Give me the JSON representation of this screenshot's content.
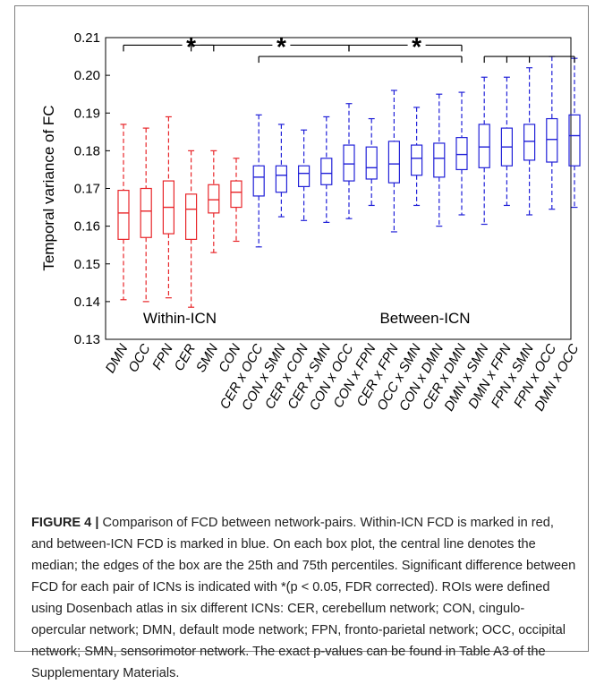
{
  "chart_data": {
    "type": "box",
    "ylabel": "Temporal variance of FC",
    "ylim": [
      0.13,
      0.21
    ],
    "yticks": [
      "0.13",
      "0.14",
      "0.15",
      "0.16",
      "0.17",
      "0.18",
      "0.19",
      "0.20",
      "0.21"
    ],
    "groups": [
      {
        "label": "Within-ICN",
        "color": "#e8262a"
      },
      {
        "label": "Between-ICN",
        "color": "#2121d8"
      }
    ],
    "boxes": [
      {
        "label": "DMN",
        "group": 0,
        "min": 0.1405,
        "q1": 0.1565,
        "median": 0.1635,
        "q3": 0.1695,
        "max": 0.187
      },
      {
        "label": "OCC",
        "group": 0,
        "min": 0.14,
        "q1": 0.157,
        "median": 0.164,
        "q3": 0.17,
        "max": 0.186
      },
      {
        "label": "FPN",
        "group": 0,
        "min": 0.141,
        "q1": 0.158,
        "median": 0.165,
        "q3": 0.172,
        "max": 0.189
      },
      {
        "label": "CER",
        "group": 0,
        "min": 0.1385,
        "q1": 0.1565,
        "median": 0.1645,
        "q3": 0.1685,
        "max": 0.18
      },
      {
        "label": "SMN",
        "group": 0,
        "min": 0.153,
        "q1": 0.1635,
        "median": 0.167,
        "q3": 0.171,
        "max": 0.18
      },
      {
        "label": "CON",
        "group": 0,
        "min": 0.156,
        "q1": 0.165,
        "median": 0.169,
        "q3": 0.172,
        "max": 0.178
      },
      {
        "label": "CER x OCC",
        "group": 1,
        "min": 0.1545,
        "q1": 0.168,
        "median": 0.173,
        "q3": 0.176,
        "max": 0.1895
      },
      {
        "label": "CON x SMN",
        "group": 1,
        "min": 0.1625,
        "q1": 0.169,
        "median": 0.1735,
        "q3": 0.176,
        "max": 0.187
      },
      {
        "label": "CER x CON",
        "group": 1,
        "min": 0.1615,
        "q1": 0.1705,
        "median": 0.174,
        "q3": 0.176,
        "max": 0.1855
      },
      {
        "label": "CER x SMN",
        "group": 1,
        "min": 0.161,
        "q1": 0.171,
        "median": 0.174,
        "q3": 0.178,
        "max": 0.189
      },
      {
        "label": "CON x OCC",
        "group": 1,
        "min": 0.162,
        "q1": 0.172,
        "median": 0.1765,
        "q3": 0.1815,
        "max": 0.1925
      },
      {
        "label": "CON x FPN",
        "group": 1,
        "min": 0.1655,
        "q1": 0.1725,
        "median": 0.1755,
        "q3": 0.181,
        "max": 0.1885
      },
      {
        "label": "CER x FPN",
        "group": 1,
        "min": 0.1585,
        "q1": 0.1715,
        "median": 0.1765,
        "q3": 0.1825,
        "max": 0.196
      },
      {
        "label": "OCC x SMN",
        "group": 1,
        "min": 0.1655,
        "q1": 0.1735,
        "median": 0.178,
        "q3": 0.1815,
        "max": 0.1915
      },
      {
        "label": "CON x DMN",
        "group": 1,
        "min": 0.16,
        "q1": 0.173,
        "median": 0.178,
        "q3": 0.182,
        "max": 0.195
      },
      {
        "label": "CER x DMN",
        "group": 1,
        "min": 0.163,
        "q1": 0.175,
        "median": 0.179,
        "q3": 0.1835,
        "max": 0.1955
      },
      {
        "label": "DMN x SMN",
        "group": 1,
        "min": 0.1605,
        "q1": 0.1755,
        "median": 0.181,
        "q3": 0.187,
        "max": 0.1995
      },
      {
        "label": "DMN x FPN",
        "group": 1,
        "min": 0.1655,
        "q1": 0.176,
        "median": 0.181,
        "q3": 0.186,
        "max": 0.1995
      },
      {
        "label": "FPN x SMN",
        "group": 1,
        "min": 0.163,
        "q1": 0.1775,
        "median": 0.1825,
        "q3": 0.187,
        "max": 0.202
      },
      {
        "label": "FPN x OCC",
        "group": 1,
        "min": 0.1645,
        "q1": 0.177,
        "median": 0.183,
        "q3": 0.1885,
        "max": 0.205
      },
      {
        "label": "DMN x OCC",
        "group": 1,
        "min": 0.165,
        "q1": 0.176,
        "median": 0.184,
        "q3": 0.1895,
        "max": 0.2045
      }
    ],
    "significance": [
      {
        "from": 0,
        "to": 4,
        "star_at": 3,
        "level": 0.208
      },
      {
        "from": 3,
        "to": 10,
        "star_at": 7,
        "level": 0.208
      },
      {
        "from": 10,
        "to": 15,
        "star_at": 13,
        "level": 0.208
      },
      {
        "from": 6,
        "to": 15,
        "star_at": null,
        "level": 0.205
      },
      {
        "from": 16,
        "to": 18,
        "star_at": null,
        "level": 0.205
      },
      {
        "from": 17,
        "to": 20,
        "star_at": null,
        "level": 0.205
      }
    ],
    "significance_symbol": "*",
    "grid": false
  },
  "caption": {
    "label": "FIGURE 4 |",
    "text": " Comparison of FCD between network-pairs. Within-ICN FCD is marked in red, and between-ICN FCD is marked in blue. On each box plot, the central line denotes the median; the edges of the box are the 25th and 75th percentiles. Significant difference between FCD for each pair of ICNs is indicated with *(p < 0.05, FDR corrected). ROIs were defined using Dosenbach atlas in six different ICNs: CER, cerebellum network; CON, cingulo-opercular network; DMN, default mode network; FPN, fronto-parietal network; OCC, occipital network; SMN, sensorimotor network. The exact p-values can be found in Table A3 of the Supplementary Materials."
  }
}
